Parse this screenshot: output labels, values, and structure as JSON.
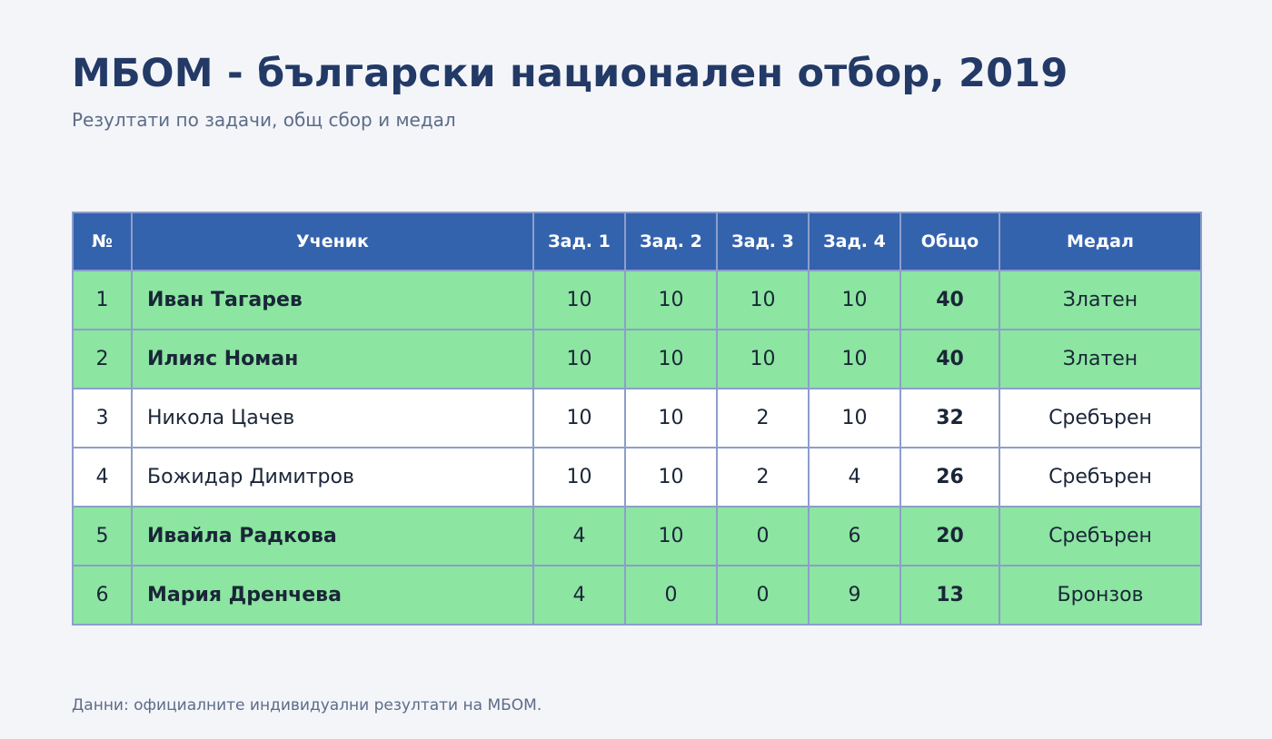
{
  "header": {
    "title": "МБОМ - български национален отбор, 2019",
    "subtitle": "Резултати по задачи, общ сбор и медал"
  },
  "table": {
    "columns": [
      "№",
      "Ученик",
      "Зад. 1",
      "Зад. 2",
      "Зад. 3",
      "Зад. 4",
      "Общо",
      "Медал"
    ],
    "rows": [
      {
        "num": "1",
        "name": "Иван Тагарев",
        "p1": "10",
        "p2": "10",
        "p3": "10",
        "p4": "10",
        "total": "40",
        "medal": "Златен",
        "highlight": true
      },
      {
        "num": "2",
        "name": "Илияс Номан",
        "p1": "10",
        "p2": "10",
        "p3": "10",
        "p4": "10",
        "total": "40",
        "medal": "Златен",
        "highlight": true
      },
      {
        "num": "3",
        "name": "Никола Цачев",
        "p1": "10",
        "p2": "10",
        "p3": "2",
        "p4": "10",
        "total": "32",
        "medal": "Сребърен",
        "highlight": false
      },
      {
        "num": "4",
        "name": "Божидар Димитров",
        "p1": "10",
        "p2": "10",
        "p3": "2",
        "p4": "4",
        "total": "26",
        "medal": "Сребърен",
        "highlight": false
      },
      {
        "num": "5",
        "name": "Ивайла Радкова",
        "p1": "4",
        "p2": "10",
        "p3": "0",
        "p4": "6",
        "total": "20",
        "medal": "Сребърен",
        "highlight": true
      },
      {
        "num": "6",
        "name": "Мария Дренчева",
        "p1": "4",
        "p2": "0",
        "p3": "0",
        "p4": "9",
        "total": "13",
        "medal": "Бронзов",
        "highlight": true
      }
    ]
  },
  "colors": {
    "header_bg": "#3463ae",
    "highlight_row": "#8ce5a1",
    "plain_row": "#ffffff",
    "title": "#233a66"
  },
  "footer": {
    "source": "Данни: официалните индивидуални резултати на МБОМ."
  }
}
